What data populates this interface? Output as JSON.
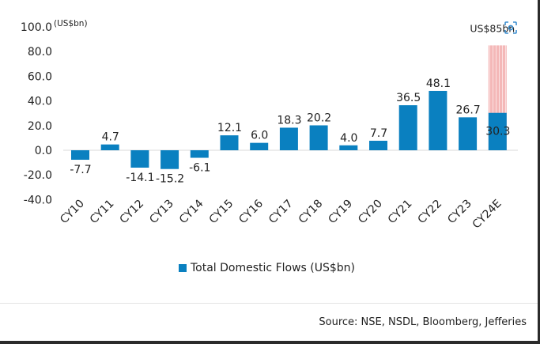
{
  "chart_data": {
    "type": "bar",
    "categories": [
      "CY10",
      "CY11",
      "CY12",
      "CY13",
      "CY14",
      "CY15",
      "CY16",
      "CY17",
      "CY18",
      "CY19",
      "CY20",
      "CY21",
      "CY22",
      "CY23",
      "CY24E"
    ],
    "series": [
      {
        "name": "Total Domestic Flows (US$bn)",
        "values": [
          -7.7,
          4.7,
          -14.1,
          -15.2,
          -6.1,
          12.1,
          6.0,
          18.3,
          20.2,
          4.0,
          7.7,
          36.5,
          48.1,
          26.7,
          30.3
        ],
        "color": "#0a80c0"
      }
    ],
    "data_labels": [
      "-7.7",
      "4.7",
      "-14.1",
      "-15.2",
      "-6.1",
      "12.1",
      "6.0",
      "18.3",
      "20.2",
      "4.0",
      "7.7",
      "36.5",
      "48.1",
      "26.7",
      "30.3"
    ],
    "projection": {
      "category": "CY24E",
      "total": 85,
      "label": "US$85bn",
      "color": "#f4b8b8"
    },
    "ylabel": "(US$bn)",
    "ylim": [
      -40,
      100
    ],
    "yticks": [
      "100.0",
      "80.0",
      "60.0",
      "40.0",
      "20.0",
      "0.0",
      "-20.0",
      "-40.0"
    ],
    "ytick_values": [
      100,
      80,
      60,
      40,
      20,
      0,
      -20,
      -40
    ],
    "grid": false,
    "legend": "bottom-center",
    "source": "Source: NSE, NSDL, Bloomberg, Jefferies"
  },
  "overlay": {
    "icon": "lens-scan-icon"
  }
}
